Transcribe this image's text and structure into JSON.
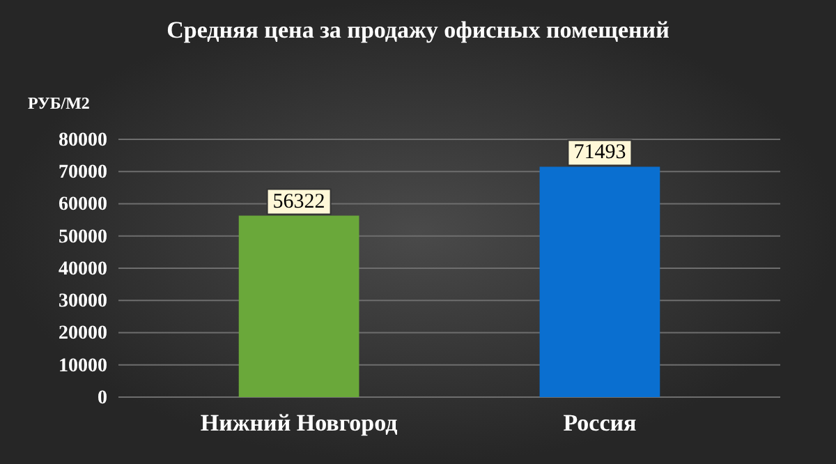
{
  "chart_data": {
    "type": "bar",
    "title": "Средняя  цена за продажу  офисных  помещений",
    "ylabel": "РУБ/М2",
    "categories": [
      "Нижний  Новгород",
      "Россия"
    ],
    "values": [
      56322,
      71493
    ],
    "colors": [
      "#6aa83a",
      "#0a6fd0"
    ],
    "ylim": [
      0,
      80000
    ],
    "yticks": [
      0,
      10000,
      20000,
      30000,
      40000,
      50000,
      60000,
      70000,
      80000
    ],
    "grid": "y",
    "data_labels": true
  }
}
